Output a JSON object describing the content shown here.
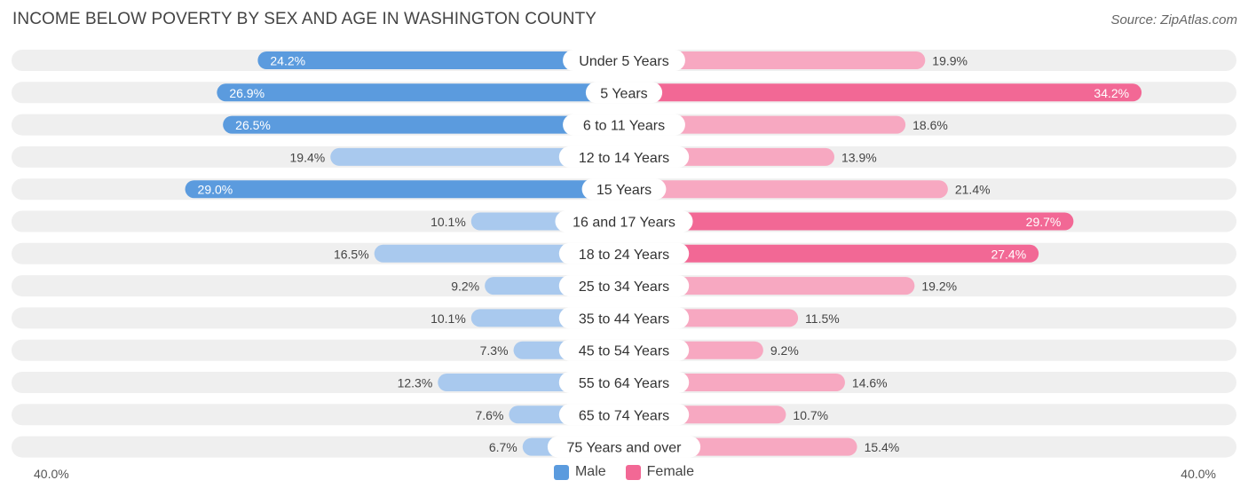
{
  "header": {
    "title": "INCOME BELOW POVERTY BY SEX AND AGE IN WASHINGTON COUNTY",
    "source": "Source: ZipAtlas.com"
  },
  "axis": {
    "left_label": "40.0%",
    "right_label": "40.0%"
  },
  "legend": {
    "male_label": "Male",
    "female_label": "Female"
  },
  "colors": {
    "male_strong": "#5b9bde",
    "male_light": "#a9c9ee",
    "female_strong": "#f26895",
    "female_light": "#f7a8c1",
    "track": "#efefef"
  },
  "chart_data": {
    "type": "bar",
    "orientation": "diverging-horizontal",
    "title": "INCOME BELOW POVERTY BY SEX AND AGE IN WASHINGTON COUNTY",
    "xlim": [
      -40,
      40
    ],
    "categories": [
      "Under 5 Years",
      "5 Years",
      "6 to 11 Years",
      "12 to 14 Years",
      "15 Years",
      "16 and 17 Years",
      "18 to 24 Years",
      "25 to 34 Years",
      "35 to 44 Years",
      "45 to 54 Years",
      "55 to 64 Years",
      "65 to 74 Years",
      "75 Years and over"
    ],
    "series": [
      {
        "name": "Male",
        "values": [
          24.2,
          26.9,
          26.5,
          19.4,
          29.0,
          10.1,
          16.5,
          9.2,
          10.1,
          7.3,
          12.3,
          7.6,
          6.7
        ],
        "labels": [
          "24.2%",
          "26.9%",
          "26.5%",
          "19.4%",
          "29.0%",
          "10.1%",
          "16.5%",
          "9.2%",
          "10.1%",
          "7.3%",
          "12.3%",
          "7.6%",
          "6.7%"
        ]
      },
      {
        "name": "Female",
        "values": [
          19.9,
          34.2,
          18.6,
          13.9,
          21.4,
          29.7,
          27.4,
          19.2,
          11.5,
          9.2,
          14.6,
          10.7,
          15.4
        ],
        "labels": [
          "19.9%",
          "34.2%",
          "18.6%",
          "13.9%",
          "21.4%",
          "29.7%",
          "27.4%",
          "19.2%",
          "11.5%",
          "9.2%",
          "14.6%",
          "10.7%",
          "15.4%"
        ]
      }
    ],
    "legend": [
      "Male",
      "Female"
    ],
    "axis_labels": [
      "40.0%",
      "40.0%"
    ]
  }
}
